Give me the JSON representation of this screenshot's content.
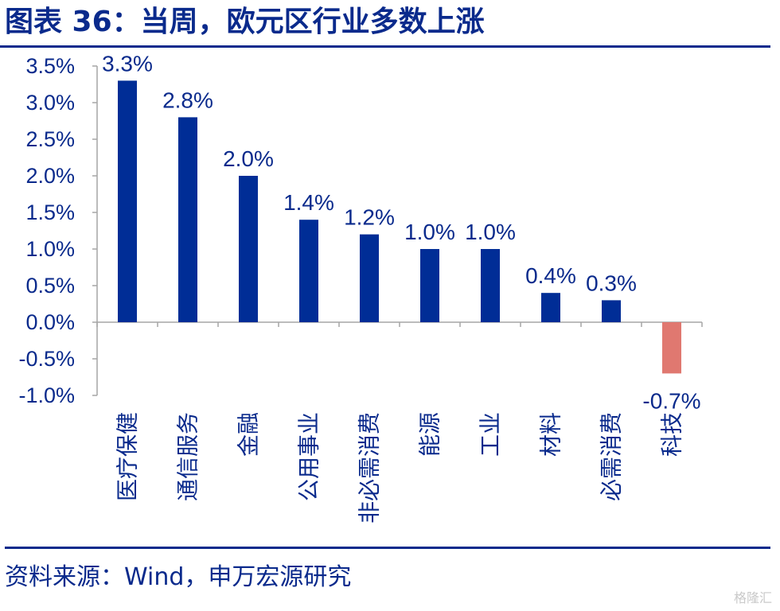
{
  "header": {
    "title": "图表 36：当周，欧元区行业多数上涨"
  },
  "footer": {
    "source": "资料来源：Wind，申万宏源研究",
    "watermark": "格隆汇"
  },
  "colors": {
    "positive_bar": "#002d96",
    "negative_bar": "#e07870",
    "text": "#0a2a8c",
    "axis": "#a6a6a6"
  },
  "chart_data": {
    "type": "bar",
    "title": "当周，欧元区行业多数上涨",
    "xlabel": "",
    "ylabel": "",
    "ylim": [
      -1.0,
      3.5
    ],
    "yticks": [
      3.5,
      3.0,
      2.5,
      2.0,
      1.5,
      1.0,
      0.5,
      0.0,
      -0.5,
      -1.0
    ],
    "ytick_labels": [
      "3.5%",
      "3.0%",
      "2.5%",
      "2.0%",
      "1.5%",
      "1.0%",
      "0.5%",
      "0.0%",
      "-0.5%",
      "-1.0%"
    ],
    "categories": [
      "医疗保健",
      "通信服务",
      "金融",
      "公用事业",
      "非必需消费",
      "能源",
      "工业",
      "材料",
      "必需消费",
      "科技"
    ],
    "values": [
      3.3,
      2.8,
      2.0,
      1.4,
      1.2,
      1.0,
      1.0,
      0.4,
      0.3,
      -0.7
    ],
    "data_labels": [
      "3.3%",
      "2.8%",
      "2.0%",
      "1.4%",
      "1.2%",
      "1.0%",
      "1.0%",
      "0.4%",
      "0.3%",
      "-0.7%"
    ],
    "grid": false,
    "legend": "none"
  }
}
